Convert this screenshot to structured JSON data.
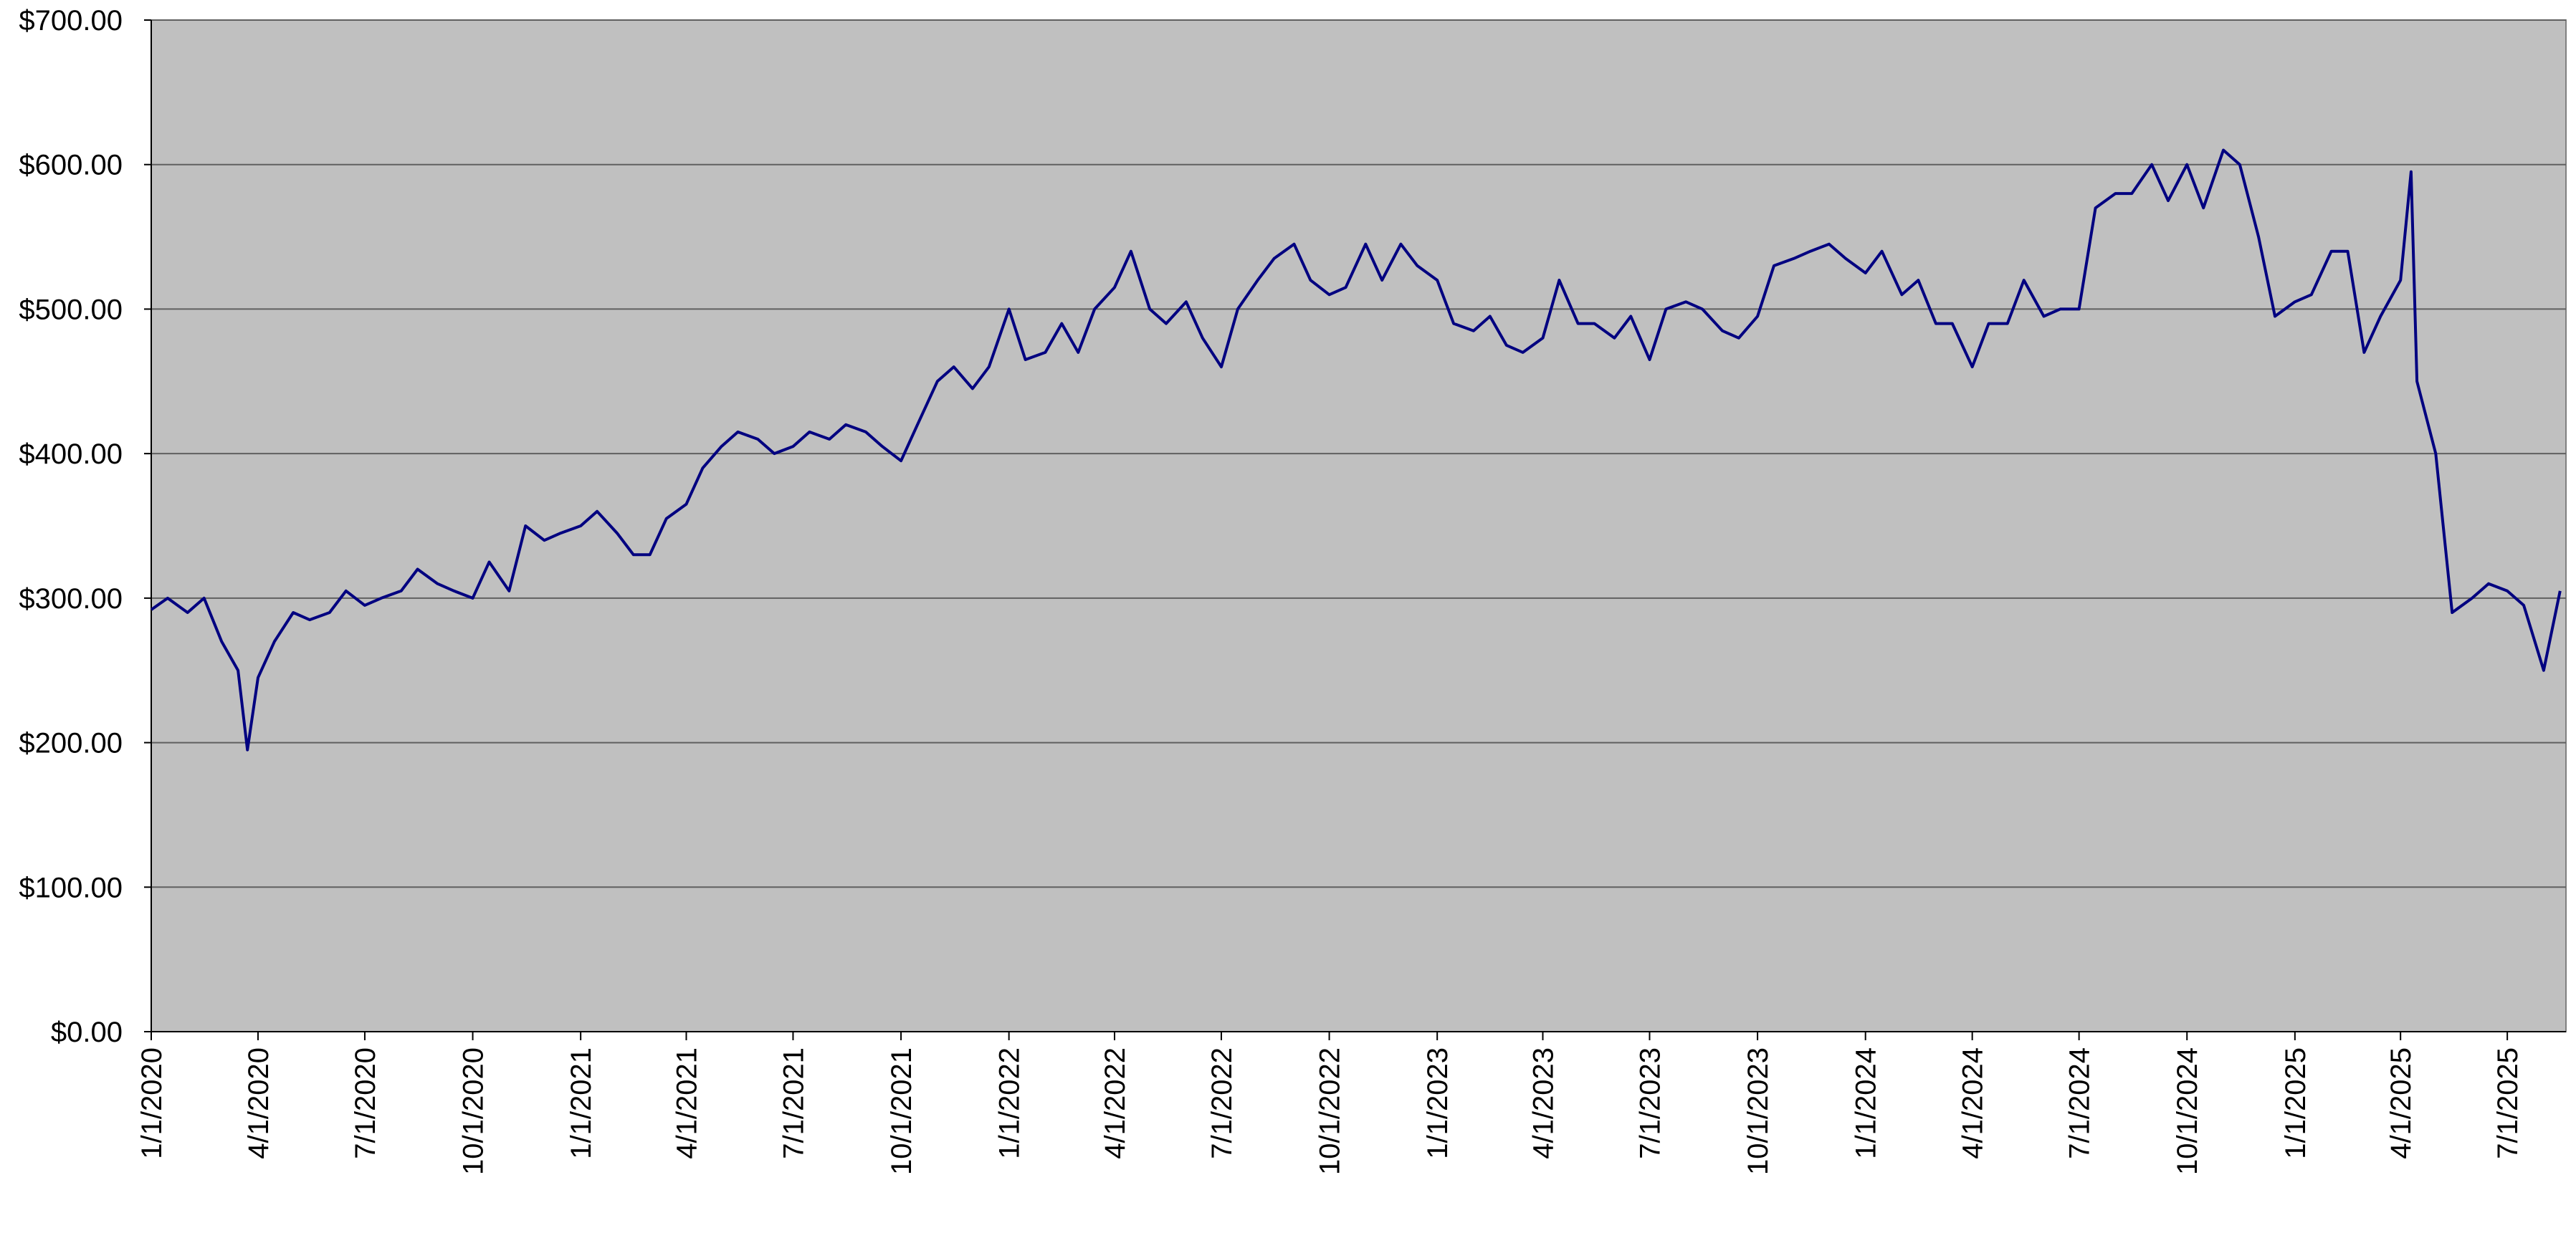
{
  "chart_data": {
    "type": "line",
    "color": "#000080",
    "background": "#c0c0c0",
    "grid": true,
    "x": [
      "1/1/2020",
      "1/15/2020",
      "2/1/2020",
      "2/15/2020",
      "3/1/2020",
      "3/15/2020",
      "3/23/2020",
      "4/1/2020",
      "4/15/2020",
      "5/1/2020",
      "5/15/2020",
      "6/1/2020",
      "6/15/2020",
      "7/1/2020",
      "7/15/2020",
      "8/1/2020",
      "8/15/2020",
      "9/1/2020",
      "9/15/2020",
      "10/1/2020",
      "10/15/2020",
      "11/1/2020",
      "11/15/2020",
      "12/1/2020",
      "12/15/2020",
      "1/1/2021",
      "1/15/2021",
      "2/1/2021",
      "2/15/2021",
      "3/1/2021",
      "3/15/2021",
      "4/1/2021",
      "4/15/2021",
      "5/1/2021",
      "5/15/2021",
      "6/1/2021",
      "6/15/2021",
      "7/1/2021",
      "7/15/2021",
      "8/1/2021",
      "8/15/2021",
      "9/1/2021",
      "9/15/2021",
      "10/1/2021",
      "10/15/2021",
      "11/1/2021",
      "11/15/2021",
      "12/1/2021",
      "12/15/2021",
      "1/1/2022",
      "1/15/2022",
      "2/1/2022",
      "2/15/2022",
      "3/1/2022",
      "3/15/2022",
      "4/1/2022",
      "4/15/2022",
      "5/1/2022",
      "5/15/2022",
      "6/1/2022",
      "6/15/2022",
      "7/1/2022",
      "7/15/2022",
      "8/1/2022",
      "8/15/2022",
      "9/1/2022",
      "9/15/2022",
      "10/1/2022",
      "10/15/2022",
      "11/1/2022",
      "11/15/2022",
      "12/1/2022",
      "12/15/2022",
      "1/1/2023",
      "1/15/2023",
      "2/1/2023",
      "2/15/2023",
      "3/1/2023",
      "3/15/2023",
      "4/1/2023",
      "4/15/2023",
      "5/1/2023",
      "5/15/2023",
      "6/1/2023",
      "6/15/2023",
      "7/1/2023",
      "7/15/2023",
      "8/1/2023",
      "8/15/2023",
      "9/1/2023",
      "9/15/2023",
      "10/1/2023",
      "10/15/2023",
      "11/1/2023",
      "11/15/2023",
      "12/1/2023",
      "12/15/2023",
      "1/1/2024",
      "1/15/2024",
      "2/1/2024",
      "2/15/2024",
      "3/1/2024",
      "3/15/2024",
      "4/1/2024",
      "4/15/2024",
      "5/1/2024",
      "5/15/2024",
      "6/1/2024",
      "6/15/2024",
      "7/1/2024",
      "7/15/2024",
      "8/1/2024",
      "8/15/2024",
      "9/1/2024",
      "9/15/2024",
      "10/1/2024",
      "10/15/2024",
      "11/1/2024",
      "11/15/2024",
      "12/1/2024",
      "12/15/2024",
      "1/1/2025",
      "1/15/2025",
      "2/1/2025",
      "2/15/2025",
      "3/1/2025",
      "3/15/2025",
      "4/1/2025",
      "4/10/2025",
      "4/15/2025",
      "5/1/2025",
      "5/15/2025",
      "6/1/2025",
      "6/15/2025",
      "7/1/2025",
      "7/15/2025",
      "8/1/2025",
      "8/15/2025"
    ],
    "values": [
      292,
      300,
      290,
      300,
      270,
      250,
      195,
      245,
      270,
      290,
      285,
      290,
      305,
      295,
      300,
      305,
      320,
      310,
      305,
      300,
      325,
      305,
      350,
      340,
      345,
      350,
      360,
      345,
      330,
      330,
      355,
      365,
      390,
      405,
      415,
      410,
      400,
      405,
      415,
      410,
      420,
      415,
      405,
      395,
      420,
      450,
      460,
      445,
      460,
      500,
      465,
      470,
      490,
      470,
      500,
      515,
      540,
      500,
      490,
      505,
      480,
      460,
      500,
      520,
      535,
      545,
      520,
      510,
      515,
      545,
      520,
      545,
      530,
      520,
      490,
      485,
      495,
      475,
      470,
      480,
      520,
      490,
      490,
      480,
      495,
      465,
      500,
      505,
      500,
      485,
      480,
      495,
      530,
      535,
      540,
      545,
      535,
      525,
      540,
      510,
      520,
      490,
      490,
      460,
      490,
      490,
      520,
      495,
      500,
      500,
      570,
      580,
      580,
      600,
      575,
      600,
      570,
      610,
      600,
      550,
      495,
      505,
      510,
      540,
      540,
      470,
      495,
      520,
      595,
      450,
      400,
      290,
      300,
      310,
      305,
      295,
      250,
      305
    ],
    "xlim": [
      "1/1/2020",
      "8/20/2025"
    ],
    "xticks": [
      "1/1/2020",
      "4/1/2020",
      "7/1/2020",
      "10/1/2020",
      "1/1/2021",
      "4/1/2021",
      "7/1/2021",
      "10/1/2021",
      "1/1/2022",
      "4/1/2022",
      "7/1/2022",
      "10/1/2022",
      "1/1/2023",
      "4/1/2023",
      "7/1/2023",
      "10/1/2023",
      "1/1/2024",
      "4/1/2024",
      "7/1/2024",
      "10/1/2024",
      "1/1/2025",
      "4/1/2025",
      "7/1/2025"
    ],
    "ylim": [
      0,
      700
    ],
    "yticks": [
      {
        "value": 0,
        "label": "$0.00"
      },
      {
        "value": 100,
        "label": "$100.00"
      },
      {
        "value": 200,
        "label": "$200.00"
      },
      {
        "value": 300,
        "label": "$300.00"
      },
      {
        "value": 400,
        "label": "$400.00"
      },
      {
        "value": 500,
        "label": "$500.00"
      },
      {
        "value": 600,
        "label": "$600.00"
      },
      {
        "value": 700,
        "label": "$700.00"
      }
    ]
  }
}
